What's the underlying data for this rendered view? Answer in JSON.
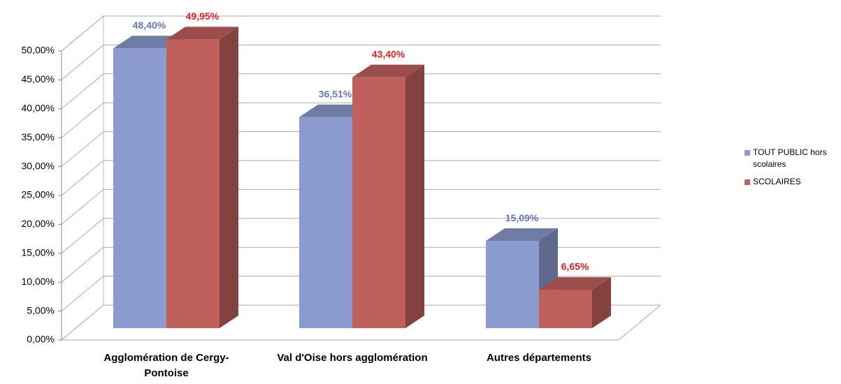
{
  "chart_data": {
    "type": "bar3d",
    "categories": [
      "Agglomération de Cergy-Pontoise",
      "Val d'Oise hors agglomération",
      "Autres départements"
    ],
    "series": [
      {
        "name": "TOUT PUBLIC hors scolaires",
        "color": "#8b9bd0",
        "label_color": "#6676b8",
        "values": [
          48.4,
          36.51,
          15.09
        ],
        "value_labels": [
          "48,40%",
          "36,51%",
          "15,09%"
        ]
      },
      {
        "name": "SCOLAIRES",
        "color": "#c0605c",
        "label_color": "#e0201c",
        "values": [
          49.95,
          43.4,
          6.65
        ],
        "value_labels": [
          "49,95%",
          "43,40%",
          "6,65%"
        ]
      }
    ],
    "ylim": [
      0,
      50
    ],
    "yticks": [
      {
        "value": 0,
        "label": "0,00%"
      },
      {
        "value": 5,
        "label": "5,00%"
      },
      {
        "value": 10,
        "label": "10,00%"
      },
      {
        "value": 15,
        "label": "15,00%"
      },
      {
        "value": 20,
        "label": "20,00%"
      },
      {
        "value": 25,
        "label": "25,00%"
      },
      {
        "value": 30,
        "label": "30,00%"
      },
      {
        "value": 35,
        "label": "35,00%"
      },
      {
        "value": 40,
        "label": "40,00%"
      },
      {
        "value": 45,
        "label": "45,00%"
      },
      {
        "value": 50,
        "label": "50,00%"
      }
    ],
    "grid": true,
    "legend": "right"
  }
}
